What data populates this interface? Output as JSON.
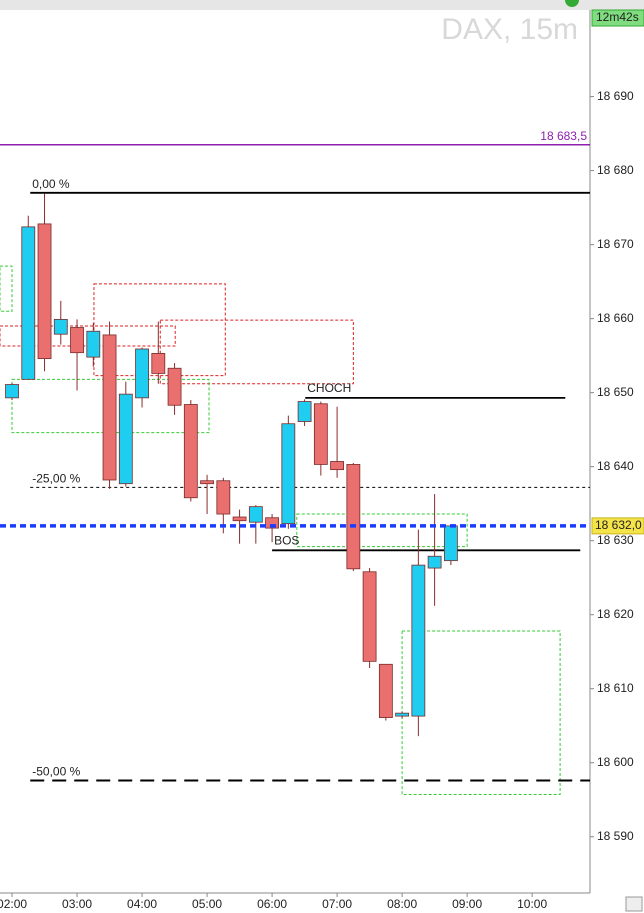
{
  "chart_data": {
    "type": "candlestick",
    "title": "DAX, 15m",
    "countdown": "12m42s",
    "x": [
      2,
      2.25,
      2.5,
      2.75,
      3,
      3.25,
      3.5,
      3.75,
      4,
      4.25,
      4.5,
      4.75,
      5,
      5.25,
      5.5,
      5.75,
      6,
      6.25,
      6.5,
      6.75,
      7,
      7.25,
      7.5,
      7.75,
      8,
      8.25,
      8.5,
      8.75
    ],
    "open": [
      18649.3,
      18651.8,
      18672.8,
      18657.9,
      18658.8,
      18654.8,
      18657.8,
      18637.7,
      18649.3,
      18655.3,
      18653.3,
      18648.4,
      18638.1,
      18638.1,
      18633.2,
      18632.5,
      18633.1,
      18632.3,
      18646.1,
      18648.5,
      18640.7,
      18640.3,
      18625.8,
      18613.3,
      18606.3,
      18606.3,
      18626.3,
      18627.3
    ],
    "high": [
      18651.3,
      18673.9,
      18676.9,
      18662.4,
      18659.9,
      18659.4,
      18659.6,
      18651.5,
      18656.1,
      18659.6,
      18654.0,
      18649.0,
      18638.9,
      18638.5,
      18634.2,
      18634.8,
      18633.6,
      18646.9,
      18649.1,
      18648.8,
      18648.1,
      18640.5,
      18626.3,
      18613.3,
      18606.9,
      18631.5,
      18636.3,
      18632.0
    ],
    "low": [
      18649.0,
      18651.8,
      18652.9,
      18656.5,
      18650.3,
      18653.5,
      18637.0,
      18637.3,
      18648.0,
      18651.2,
      18647.0,
      18635.3,
      18633.6,
      18631.0,
      18629.6,
      18629.6,
      18629.8,
      18631.6,
      18645.5,
      18638.8,
      18638.5,
      18625.9,
      18612.8,
      18605.7,
      18606.0,
      18603.6,
      18621.2,
      18626.7
    ],
    "close": [
      18651.1,
      18672.4,
      18654.6,
      18659.9,
      18655.4,
      18658.3,
      18638.2,
      18649.8,
      18655.9,
      18652.6,
      18648.3,
      18635.8,
      18637.7,
      18633.6,
      18632.7,
      18634.6,
      18631.7,
      18645.8,
      18648.8,
      18640.3,
      18639.6,
      18626.2,
      18613.7,
      18606.1,
      18606.7,
      18626.7,
      18627.9,
      18632.0
    ],
    "up_color": "#1fcdf0",
    "down_color": "#e9706e",
    "xlim": [
      1.815,
      10.89
    ],
    "xticks": [
      {
        "value": 2,
        "label": "02:00"
      },
      {
        "value": 3,
        "label": "03:00"
      },
      {
        "value": 4,
        "label": "04:00"
      },
      {
        "value": 5,
        "label": "05:00"
      },
      {
        "value": 6,
        "label": "06:00"
      },
      {
        "value": 7,
        "label": "07:00"
      },
      {
        "value": 8,
        "label": "08:00"
      },
      {
        "value": 9,
        "label": "09:00"
      },
      {
        "value": 10,
        "label": "10:00"
      }
    ],
    "ylim": [
      18582.4,
      18701.7
    ],
    "yticks": [
      {
        "value": 18590,
        "label": "18 590"
      },
      {
        "value": 18600,
        "label": "18 600"
      },
      {
        "value": 18610,
        "label": "18 610"
      },
      {
        "value": 18620,
        "label": "18 620"
      },
      {
        "value": 18630,
        "label": "18 630"
      },
      {
        "value": 18640,
        "label": "18 640"
      },
      {
        "value": 18650,
        "label": "18 650"
      },
      {
        "value": 18660,
        "label": "18 660"
      },
      {
        "value": 18670,
        "label": "18 670"
      },
      {
        "value": 18680,
        "label": "18 680"
      },
      {
        "value": 18690,
        "label": "18 690"
      }
    ],
    "last_price": {
      "value": 18632.0,
      "label": "18 632,0"
    },
    "level": {
      "value": 18683.5,
      "label": "18 683,5",
      "color": "#8e1fb0"
    },
    "fib": [
      {
        "label": "0,00 %",
        "value": 18677.0,
        "dash": "solid",
        "start": 2.28
      },
      {
        "label": "-25,00 %",
        "value": 18637.2,
        "dash": "dotted",
        "start": 2.28
      },
      {
        "label": "-50,00 %",
        "value": 18597.6,
        "dash": "dashed",
        "start": 2.28
      }
    ],
    "structure": [
      {
        "label": "CHOCH",
        "value": 18649.3,
        "x": [
          6.51,
          10.51
        ]
      },
      {
        "label": "BOS",
        "value": 18628.7,
        "x": [
          6.0,
          10.74
        ]
      }
    ],
    "zones": [
      {
        "color": "#d22",
        "x": [
          3.26,
          5.28
        ],
        "y": [
          18652.3,
          18664.7
        ]
      },
      {
        "color": "#d22",
        "x": [
          4.28,
          7.25
        ],
        "y": [
          18651.2,
          18659.8
        ]
      },
      {
        "color": "#d22",
        "x": [
          1.815,
          4.51
        ],
        "y": [
          18656.3,
          18659.0
        ]
      },
      {
        "color": "#3c3",
        "x": [
          2.0,
          5.03
        ],
        "y": [
          18644.6,
          18651.8
        ]
      },
      {
        "color": "#3c3",
        "x": [
          1.815,
          2.0
        ],
        "y": [
          18661.0,
          18667.1
        ]
      },
      {
        "color": "#3c3",
        "x": [
          6.38,
          9.0
        ],
        "y": [
          18629.2,
          18633.6
        ]
      },
      {
        "color": "#3c3",
        "x": [
          8.0,
          10.43
        ],
        "y": [
          18595.7,
          18617.8
        ]
      }
    ]
  }
}
